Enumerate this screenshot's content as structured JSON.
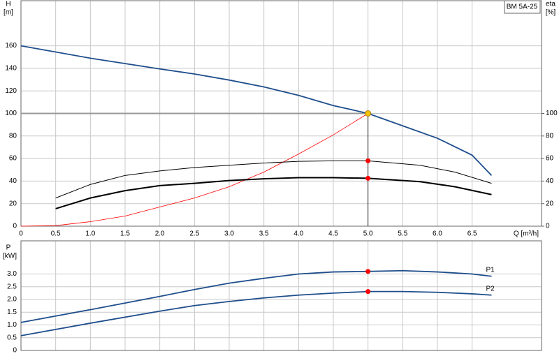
{
  "chart_data": [
    {
      "type": "line",
      "model": "BM 5A-25",
      "ylabel": [
        "H",
        "[m]"
      ],
      "y2label": [
        "eta",
        "[%]"
      ],
      "xlabel": "Q [m³/h]",
      "xlim": [
        0,
        7.5
      ],
      "ylim": [
        0,
        200
      ],
      "y2lim": [
        0,
        200
      ],
      "xticks": [
        0,
        0.5,
        {
          "value": 1,
          "label": "1.0"
        },
        1.5,
        {
          "value": 2,
          "label": "2.0"
        },
        2.5,
        {
          "value": 3,
          "label": "3.0"
        },
        3.5,
        {
          "value": 4,
          "label": "4.0"
        },
        4.5,
        {
          "value": 5,
          "label": "5.0"
        },
        5.5,
        {
          "value": 6,
          "label": "6.0"
        },
        6.5
      ],
      "yticks": [
        0,
        20,
        40,
        60,
        80,
        100,
        120,
        140,
        160
      ],
      "y2ticks": [
        0,
        20,
        40,
        60,
        80,
        100
      ],
      "grid": true,
      "duty_point": {
        "x": 5,
        "y": 100,
        "color": "#f2c200"
      },
      "series": [
        {
          "color": "#1f4e8c",
          "x": [
            0,
            1,
            2,
            2.5,
            3,
            3.5,
            4,
            4.5,
            5,
            5.5,
            6,
            6.5,
            6.78
          ],
          "values": [
            160,
            149,
            139.5,
            135,
            129.6,
            123.5,
            116,
            107,
            100,
            89,
            78,
            63,
            45
          ]
        },
        {
          "color": "#ff0000",
          "axis": "y2",
          "x": [
            0,
            0.5,
            1,
            1.5,
            2,
            2.5,
            3,
            3.5,
            4,
            4.5,
            5
          ],
          "values": [
            0,
            0.5,
            4,
            9,
            17,
            25,
            35,
            48,
            64,
            81,
            100
          ]
        },
        {
          "color": "#000000",
          "axis": "y2",
          "x": [
            0.5,
            1,
            1.5,
            2,
            2.5,
            3,
            3.5,
            4,
            4.5,
            5,
            5.75,
            6.25,
            6.78
          ],
          "values": [
            25,
            37,
            45,
            49,
            52,
            54,
            56,
            57.5,
            58,
            58,
            54,
            48,
            38
          ]
        },
        {
          "color": "#000000",
          "axis": "y2",
          "x": [
            0.5,
            1,
            1.5,
            2,
            2.5,
            3,
            3.5,
            4,
            4.5,
            5,
            5.75,
            6.25,
            6.78
          ],
          "values": [
            15.5,
            25,
            31.5,
            36,
            38,
            40.5,
            42,
            43,
            43,
            42.5,
            39.5,
            35,
            28
          ]
        }
      ],
      "points": [
        {
          "x": 5,
          "y": 58,
          "axis": "y2",
          "color": "#ff0000"
        },
        {
          "x": 5,
          "y": 42.5,
          "axis": "y2",
          "color": "#ff0000"
        }
      ]
    },
    {
      "type": "line",
      "ylabel": [
        "P",
        "[kW]"
      ],
      "xlim": [
        0,
        7.5
      ],
      "ylim": [
        0,
        4.3
      ],
      "yticks": [
        0,
        0.5,
        {
          "value": 1,
          "label": "1.0"
        },
        1.5,
        {
          "value": 2,
          "label": "2.0"
        },
        2.5,
        {
          "value": 3,
          "label": "3.0"
        }
      ],
      "grid": true,
      "series": [
        {
          "name": "P1",
          "color": "#1f4e8c",
          "x": [
            0,
            1,
            2,
            2.5,
            3,
            3.5,
            4,
            4.5,
            5,
            5.5,
            6,
            6.5,
            6.78
          ],
          "values": [
            1.1,
            1.6,
            2.12,
            2.39,
            2.64,
            2.83,
            3,
            3.08,
            3.1,
            3.13,
            3.08,
            3,
            2.91
          ]
        },
        {
          "name": "P2",
          "color": "#1f4e8c",
          "x": [
            0,
            1,
            2,
            2.5,
            3,
            3.5,
            4,
            4.5,
            5,
            5.5,
            6,
            6.5,
            6.78
          ],
          "values": [
            0.58,
            1.07,
            1.54,
            1.76,
            1.92,
            2.06,
            2.17,
            2.25,
            2.31,
            2.31,
            2.28,
            2.22,
            2.17
          ]
        }
      ],
      "points": [
        {
          "x": 5,
          "y": 3.1,
          "color": "#ff0000"
        },
        {
          "x": 5,
          "y": 2.31,
          "color": "#ff0000"
        }
      ]
    }
  ]
}
